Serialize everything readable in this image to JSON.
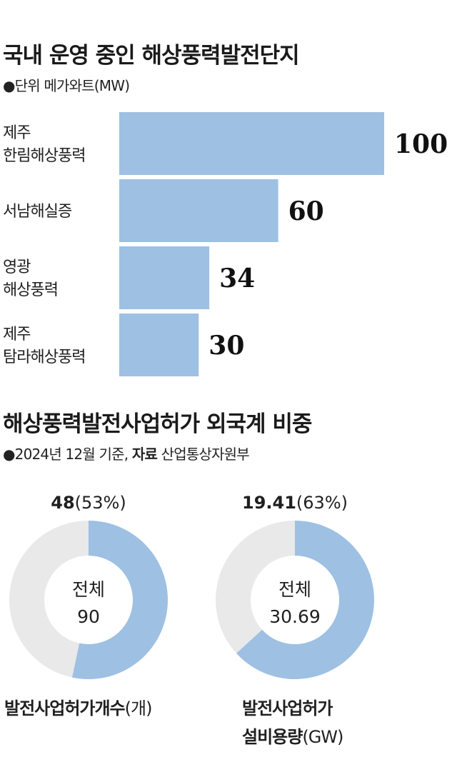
{
  "chart_data": [
    {
      "type": "bar",
      "orientation": "horizontal",
      "title": "국내 운영 중인 해상풍력발전단지",
      "subtitle": "●단위 메가와트(MW)",
      "categories": [
        [
          "제주",
          "한림해상풍력"
        ],
        [
          "서남해실증"
        ],
        [
          "영광",
          "해상풍력"
        ],
        [
          "제주",
          "탐라해상풍력"
        ]
      ],
      "values": [
        100,
        60,
        34,
        30
      ],
      "value_labels": [
        "100",
        "60",
        "34",
        "30"
      ],
      "color": "#9ec0e2",
      "grid": false
    },
    {
      "title": "해상풍력발전사업허가 외국계 비중",
      "subtitle_prefix": "●2024년 12월 기준,",
      "subtitle_source_label": "자료",
      "subtitle_source": "산업통상자원부",
      "charts": [
        {
          "type": "pie",
          "style": "donut",
          "top_value": "48",
          "top_percent": "(53%)",
          "center_label": "전체",
          "center_value": "90",
          "total": 90,
          "foreign": 48,
          "label_lines": [
            [
              "발전사업허가개수",
              "(개)"
            ]
          ],
          "colors": {
            "foreign": "#9ec0e2",
            "rest": "#e9e9ea"
          }
        },
        {
          "type": "pie",
          "style": "donut",
          "top_value": "19.41",
          "top_percent": "(63%)",
          "center_label": "전체",
          "center_value": "30.69",
          "total": 30.69,
          "foreign": 19.41,
          "label_lines": [
            [
              "발전사업허가",
              ""
            ],
            [
              "설비용량",
              "(GW)"
            ]
          ],
          "colors": {
            "foreign": "#9ec0e2",
            "rest": "#e9e9ea"
          }
        }
      ]
    }
  ]
}
